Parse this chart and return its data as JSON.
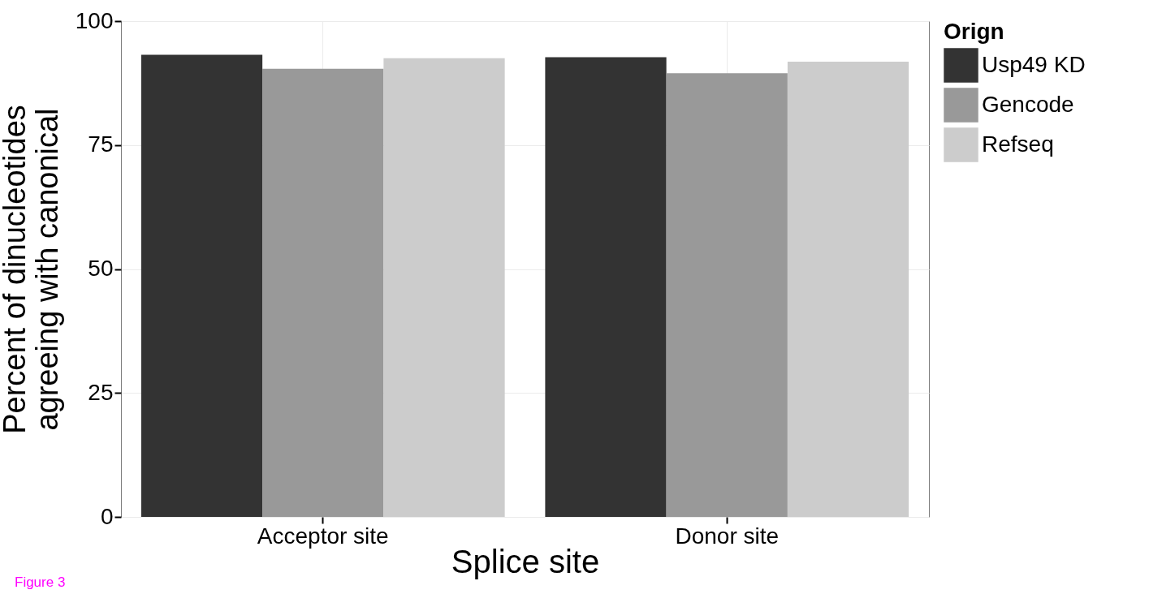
{
  "chart_data": {
    "type": "bar",
    "xlabel": "Splice site",
    "ylabel": "Percent of dinucleotides\nagreeing with canonical",
    "legend_title": "Orign",
    "categories": [
      "Acceptor site",
      "Donor site"
    ],
    "series": [
      {
        "name": "Usp49 KD",
        "color": "#333333",
        "values": [
          93.2,
          92.7
        ]
      },
      {
        "name": "Gencode",
        "color": "#999999",
        "values": [
          90.4,
          89.5
        ]
      },
      {
        "name": "Refseq",
        "color": "#cccccc",
        "values": [
          92.5,
          91.8
        ]
      }
    ],
    "ylim": [
      0,
      100
    ],
    "yticks": [
      0,
      25,
      50,
      75,
      100
    ],
    "grid": true,
    "legend": "right",
    "annotations": [
      "Figure 3"
    ]
  }
}
